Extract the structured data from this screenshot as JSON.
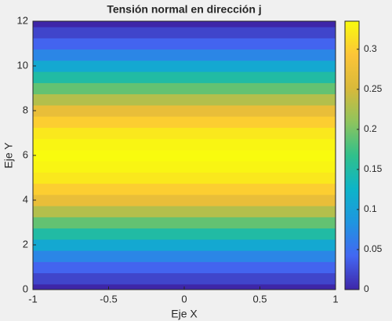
{
  "chart_data": {
    "type": "heatmap",
    "title": "Tensión normal en dirección j",
    "xlabel": "Eje X",
    "ylabel": "Eje Y",
    "y": [
      0,
      0.5,
      1,
      1.5,
      2,
      2.5,
      3,
      3.5,
      4,
      4.5,
      5,
      5.5,
      6,
      6.5,
      7,
      7.5,
      8,
      8.5,
      9,
      9.5,
      10,
      10.5,
      11,
      11.5,
      12
    ],
    "values": [
      0,
      0.02,
      0.04,
      0.07,
      0.11,
      0.15,
      0.19,
      0.23,
      0.27,
      0.3,
      0.32,
      0.33,
      0.335,
      0.33,
      0.32,
      0.3,
      0.27,
      0.23,
      0.19,
      0.15,
      0.11,
      0.07,
      0.04,
      0.02,
      0
    ],
    "xlim": [
      -1,
      1
    ],
    "xticks": [
      -1,
      -0.5,
      0,
      0.5,
      1
    ],
    "ylim": [
      0,
      12
    ],
    "yticks": [
      0,
      2,
      4,
      6,
      8,
      10,
      12
    ],
    "clim": [
      0,
      0.335
    ],
    "cticks": [
      0,
      0.05,
      0.1,
      0.15,
      0.2,
      0.25,
      0.3
    ],
    "colormap": [
      "#3e26a8",
      "#4367f2",
      "#1f95e0",
      "#0db4c8",
      "#30c08b",
      "#8fc45d",
      "#d9b93a",
      "#fcc538",
      "#f9fb0e"
    ]
  }
}
